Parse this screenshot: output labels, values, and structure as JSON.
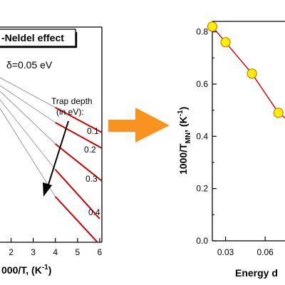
{
  "chart_data": [
    {
      "type": "line",
      "title": "-Neldel effect",
      "annotation": "δ=0.05 eV",
      "xlabel": "000/T, (K⁻¹)",
      "xlabel_main": "000/T, (K",
      "xlabel_sup": "-1",
      "xlabel_tail": ")",
      "xlim": [
        1.5,
        6.1
      ],
      "x_ticks": [
        2,
        3,
        4,
        5,
        6
      ],
      "x_tick_labels": [
        "2",
        "3",
        "4",
        "5",
        "6"
      ],
      "legend_title_1": "Trap depth",
      "legend_title_2": "(in eV):",
      "curve_labels": [
        "0.1",
        "0.2",
        "0.3",
        "0.4"
      ],
      "series": [
        {
          "label": "0.1",
          "gray_x": [
            1.5,
            4.0
          ],
          "red_x": [
            4.0,
            6.1
          ]
        },
        {
          "label": "0.2",
          "gray_x": [
            1.5,
            4.0
          ],
          "red_x": [
            4.0,
            6.1
          ]
        },
        {
          "label": "0.3",
          "gray_x": [
            1.5,
            4.0
          ],
          "red_x": [
            4.0,
            6.1
          ]
        },
        {
          "label": "0.4",
          "gray_x": [
            1.5,
            4.0
          ],
          "red_x": [
            4.0,
            6.1
          ]
        },
        {
          "label": "",
          "gray_x": [
            1.5,
            4.0
          ],
          "red_x": [
            4.0,
            6.1
          ]
        }
      ],
      "colors": {
        "segment_high_T": "#999999",
        "segment_low_T": "#cc0000",
        "arrow": "#000000"
      }
    },
    {
      "type": "scatter",
      "xlabel": "Energy d",
      "ylabel_main": "1000/T",
      "ylabel_sub": "MN",
      "ylabel_tail": ", (K",
      "ylabel_sup": "-1",
      "ylabel_end": ")",
      "xlim": [
        0.02,
        0.075
      ],
      "ylim": [
        0.0,
        0.84
      ],
      "x_ticks": [
        0.03,
        0.06
      ],
      "x_tick_labels": [
        "0.03",
        "0.06"
      ],
      "y_ticks": [
        0.0,
        0.2,
        0.4,
        0.6,
        0.8
      ],
      "y_tick_labels": [
        "0.0",
        "0.2",
        "0.4",
        "0.6",
        "0.8"
      ],
      "series": [
        {
          "x": [
            0.02,
            0.03,
            0.05,
            0.07
          ],
          "y": [
            0.82,
            0.76,
            0.64,
            0.49
          ]
        }
      ],
      "colors": {
        "marker_fill": "#ffee00",
        "marker_edge": "#c08000",
        "line": "#cc0000"
      }
    }
  ],
  "arrow": {
    "color": "#f7931e",
    "direction": "right"
  }
}
